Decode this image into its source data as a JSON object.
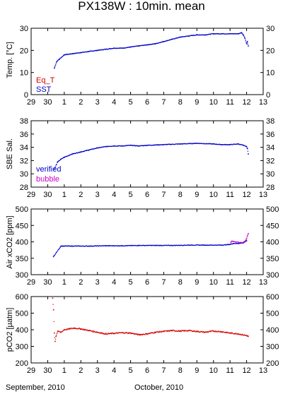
{
  "title": "PX138W : 10min. mean",
  "colors": {
    "red": "#d40000",
    "blue": "#0000c8",
    "magenta": "#c800c8",
    "axis": "#000000"
  },
  "x_ticks": [
    "29",
    "30",
    "1",
    "2",
    "3",
    "4",
    "5",
    "6",
    "7",
    "8",
    "9",
    "10",
    "11",
    "12",
    "13"
  ],
  "captions": {
    "sep": "September, 2010",
    "oct": "October, 2010"
  },
  "chart_data": [
    {
      "type": "scatter",
      "ylabel": "Temp. [°C]",
      "ylim": [
        0,
        30
      ],
      "yticks": [
        "0",
        "10",
        "20",
        "30"
      ],
      "legend": [
        "Eq_T",
        "SST"
      ],
      "legend_placement": "bottom-left",
      "series": [
        {
          "name": "SST",
          "color": "blue",
          "x": [
            30.4,
            30.55,
            30.7,
            31.0,
            31.5,
            32.0,
            32.5,
            33.0,
            33.5,
            34.0,
            34.5,
            35.0,
            35.5,
            36.0,
            36.5,
            37.0,
            37.5,
            38.0,
            38.5,
            39.0,
            39.5,
            40.0,
            40.5,
            41.0,
            41.5,
            41.7,
            41.8,
            41.9,
            42.0,
            42.05,
            42.1
          ],
          "y": [
            12,
            15,
            16,
            18,
            18.5,
            19,
            19.5,
            20,
            20.5,
            21,
            21,
            21.5,
            22,
            22.5,
            23,
            24,
            25,
            26,
            26.5,
            27,
            27,
            27.5,
            27.5,
            27.5,
            27.5,
            28,
            27,
            25.5,
            23,
            24,
            22
          ]
        }
      ]
    },
    {
      "type": "scatter",
      "ylabel": "SBE Sal.",
      "ylim": [
        28,
        38
      ],
      "yticks": [
        "28",
        "30",
        "32",
        "34",
        "36",
        "38"
      ],
      "legend": [
        "verified",
        "bubble"
      ],
      "legend_placement": "bottom-left",
      "series": [
        {
          "name": "verified",
          "color": "blue",
          "x": [
            30.4,
            30.6,
            30.8,
            31.0,
            31.5,
            32.0,
            32.5,
            33.0,
            33.5,
            34.0,
            34.5,
            35.0,
            35.5,
            36.0,
            37.0,
            38.0,
            39.0,
            40.0,
            40.5,
            41.0,
            41.5,
            41.8,
            42.0,
            42.05,
            42.1
          ],
          "y": [
            30.7,
            31.8,
            32.2,
            32.5,
            33.0,
            33.3,
            33.6,
            33.9,
            34.1,
            34.2,
            34.2,
            34.3,
            34.2,
            34.3,
            34.4,
            34.5,
            34.6,
            34.5,
            34.4,
            34.4,
            34.5,
            34.3,
            34.1,
            33.8,
            33.0
          ]
        }
      ]
    },
    {
      "type": "scatter",
      "ylabel": "Air xCO2 [ppm]",
      "ylim": [
        300,
        500
      ],
      "yticks": [
        "300",
        "350",
        "400",
        "450",
        "500"
      ],
      "series": [
        {
          "name": "",
          "color": "blue",
          "x": [
            30.35,
            30.8,
            31.5,
            32.5,
            33.5,
            34.5,
            35.5,
            36.5,
            37.5,
            38.5,
            39.5,
            40.5,
            41.0,
            41.2,
            41.5,
            41.8,
            42.0
          ],
          "y": [
            355,
            387,
            387,
            387,
            388,
            388,
            389,
            389,
            389,
            390,
            390,
            390,
            392,
            395,
            395,
            397,
            403
          ]
        },
        {
          "name": "",
          "color": "magenta",
          "x": [
            41.05,
            41.1,
            41.75,
            41.85,
            41.95,
            42.0,
            42.05,
            42.1
          ],
          "y": [
            398,
            402,
            397,
            400,
            405,
            410,
            418,
            425
          ]
        }
      ]
    },
    {
      "type": "scatter",
      "ylabel": "pCO2 [µatm]",
      "ylim": [
        200,
        600
      ],
      "yticks": [
        "200",
        "300",
        "400",
        "500",
        "600"
      ],
      "series": [
        {
          "name": "",
          "color": "red",
          "x": [
            30.3,
            30.35,
            30.4,
            30.45,
            30.5,
            30.6,
            30.8,
            31.0,
            31.3,
            31.6,
            32.0,
            32.5,
            33.0,
            33.5,
            34.0,
            34.5,
            35.0,
            35.5,
            36.0,
            36.5,
            37.0,
            37.5,
            38.0,
            38.5,
            39.0,
            39.5,
            40.0,
            40.5,
            41.0,
            41.5,
            42.0,
            42.1
          ],
          "y": [
            590,
            520,
            380,
            330,
            360,
            390,
            385,
            400,
            405,
            410,
            405,
            395,
            385,
            375,
            378,
            382,
            380,
            370,
            375,
            385,
            390,
            395,
            392,
            395,
            390,
            385,
            392,
            388,
            380,
            375,
            365,
            360
          ]
        }
      ]
    }
  ]
}
